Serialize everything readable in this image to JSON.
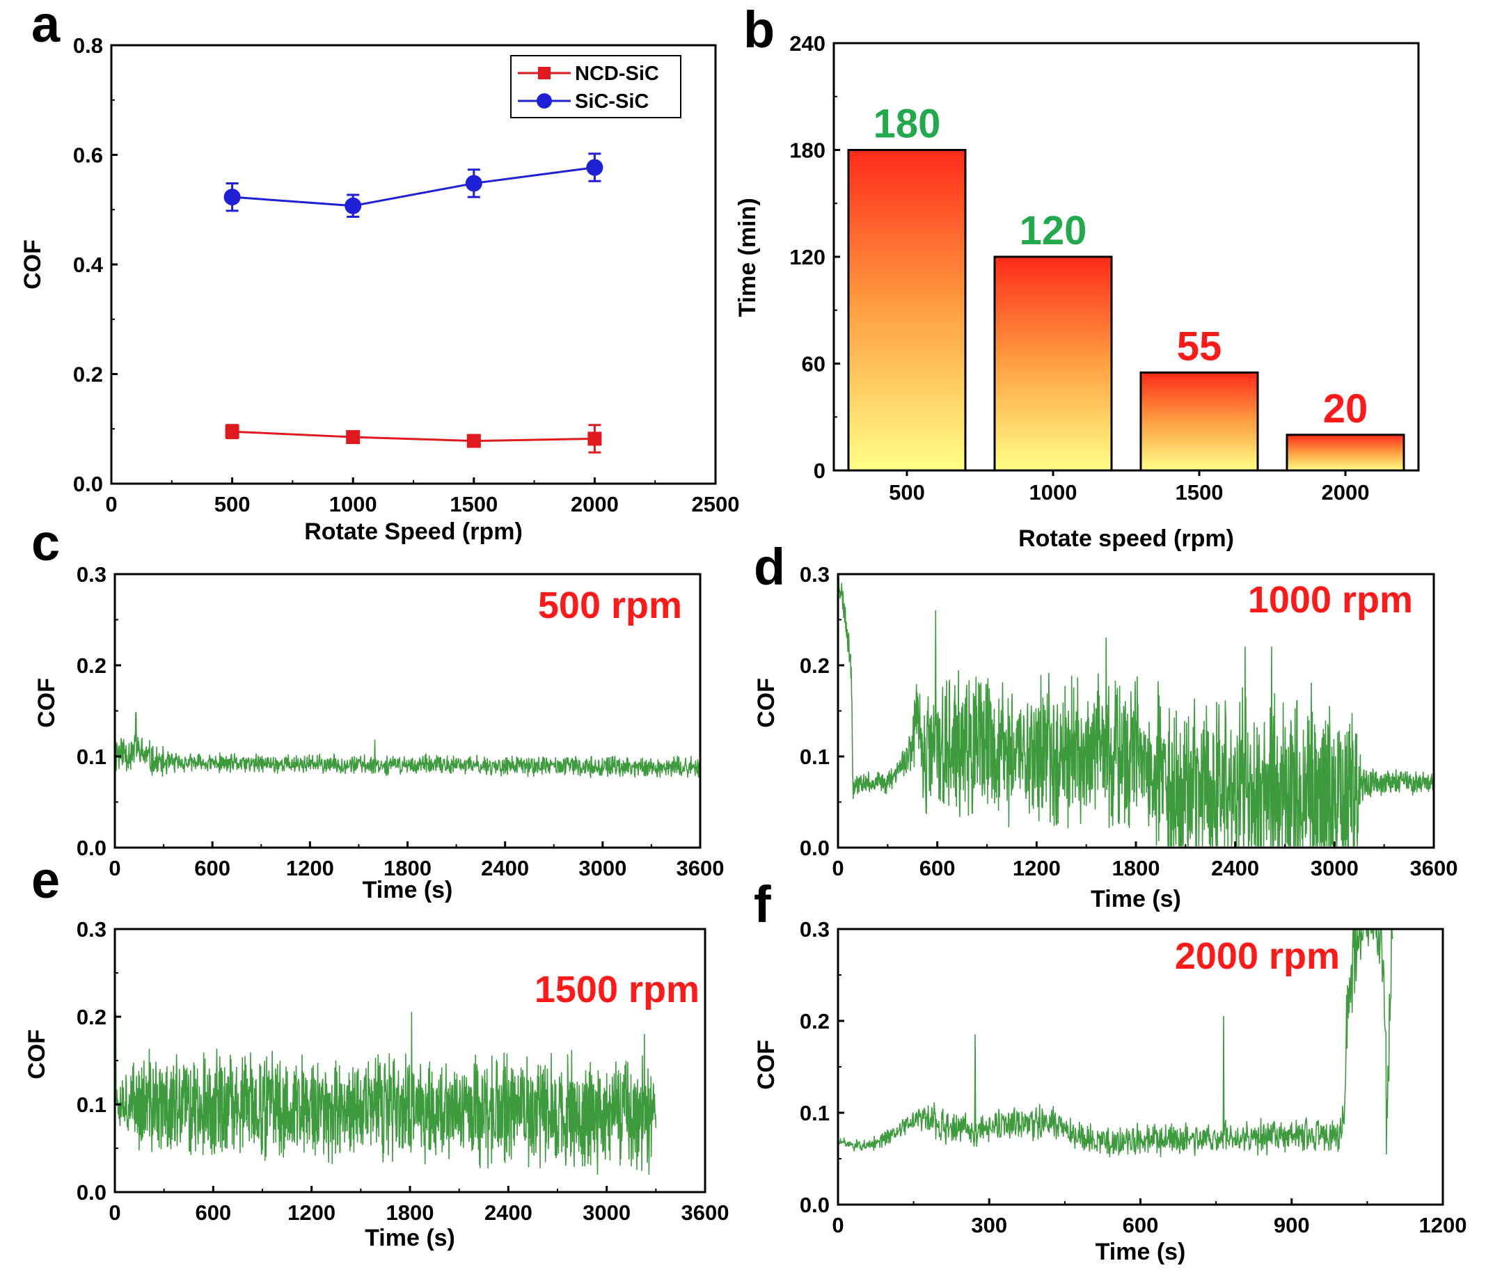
{
  "panels": {
    "a": "a",
    "b": "b",
    "c": "c",
    "d": "d",
    "e": "e",
    "f": "f"
  },
  "colors": {
    "red": "#e0191e",
    "blue": "#1f1fd6",
    "green": "#3d9a3d",
    "bar_label_green": "#22a94b",
    "bar_label_red": "#ff1a1a",
    "bar_top": "#ff2a1a",
    "bar_bottom": "#ffff88"
  },
  "chart_data": [
    {
      "id": "a",
      "type": "line",
      "xlabel": "Rotate Speed (rpm)",
      "ylabel": "COF",
      "xlim": [
        0,
        2500
      ],
      "ylim": [
        0,
        0.8
      ],
      "xticks": [
        "0",
        "500",
        "1000",
        "1500",
        "2000",
        "2500"
      ],
      "yticks": [
        "0.0",
        "0.2",
        "0.4",
        "0.6",
        "0.8"
      ],
      "legend_position": "top-right",
      "series": [
        {
          "name": "NCD-SiC",
          "marker": "square",
          "color": "#e0191e",
          "x": [
            500,
            1000,
            1500,
            2000
          ],
          "y": [
            0.095,
            0.085,
            0.078,
            0.082
          ],
          "err": [
            0.012,
            0.009,
            0.008,
            0.025
          ]
        },
        {
          "name": "SiC-SiC",
          "marker": "circle",
          "color": "#1f1fd6",
          "x": [
            500,
            1000,
            1500,
            2000
          ],
          "y": [
            0.523,
            0.507,
            0.548,
            0.577
          ],
          "err": [
            0.025,
            0.02,
            0.025,
            0.025
          ]
        }
      ]
    },
    {
      "id": "b",
      "type": "bar",
      "xlabel": "Rotate speed (rpm)",
      "ylabel": "Time (min)",
      "ylim": [
        0,
        240
      ],
      "yticks": [
        "0",
        "60",
        "120",
        "180",
        "240"
      ],
      "categories": [
        "500",
        "1000",
        "1500",
        "2000"
      ],
      "values": [
        180,
        120,
        55,
        20
      ],
      "value_labels": [
        "180",
        "120",
        "55",
        "20"
      ],
      "value_label_colors": [
        "#22a94b",
        "#22a94b",
        "#ff1a1a",
        "#ff1a1a"
      ]
    },
    {
      "id": "c",
      "type": "line",
      "annotation": "500 rpm",
      "xlabel": "Time (s)",
      "ylabel": "COF",
      "xlim": [
        0,
        3600
      ],
      "ylim": [
        0,
        0.3
      ],
      "xticks": [
        "0",
        "600",
        "1200",
        "1800",
        "2400",
        "3000",
        "3600"
      ],
      "yticks": [
        "0.0",
        "0.1",
        "0.2",
        "0.3"
      ],
      "trace": {
        "t_end": 3600,
        "samples": 1400,
        "seed": 11,
        "mean_pts": [
          [
            0,
            0.105
          ],
          [
            150,
            0.105
          ],
          [
            250,
            0.093
          ],
          [
            3600,
            0.088
          ]
        ],
        "amp_pts": [
          [
            0,
            0.03
          ],
          [
            250,
            0.022
          ],
          [
            400,
            0.012
          ],
          [
            3600,
            0.013
          ]
        ],
        "spikes": [
          [
            1600,
            0.118
          ],
          [
            130,
            0.148
          ]
        ]
      }
    },
    {
      "id": "d",
      "type": "line",
      "annotation": "1000 rpm",
      "xlabel": "Time (s)",
      "ylabel": "COF",
      "xlim": [
        0,
        3600
      ],
      "ylim": [
        0,
        0.3
      ],
      "xticks": [
        "0",
        "600",
        "1200",
        "1800",
        "2400",
        "3000",
        "3600"
      ],
      "yticks": [
        "0.0",
        "0.1",
        "0.2",
        "0.3"
      ],
      "trace": {
        "t_end": 3600,
        "samples": 1800,
        "seed": 23,
        "mean_pts": [
          [
            0,
            0.3
          ],
          [
            40,
            0.26
          ],
          [
            80,
            0.2
          ],
          [
            90,
            0.07
          ],
          [
            300,
            0.072
          ],
          [
            420,
            0.1
          ],
          [
            470,
            0.14
          ],
          [
            520,
            0.1
          ],
          [
            600,
            0.11
          ],
          [
            1800,
            0.1
          ],
          [
            1900,
            0.07
          ],
          [
            3100,
            0.06
          ],
          [
            3150,
            0.07
          ],
          [
            3600,
            0.072
          ]
        ],
        "amp_pts": [
          [
            0,
            0.02
          ],
          [
            90,
            0.02
          ],
          [
            100,
            0.012
          ],
          [
            380,
            0.015
          ],
          [
            560,
            0.09
          ],
          [
            1800,
            0.1
          ],
          [
            1900,
            0.12
          ],
          [
            3130,
            0.13
          ],
          [
            3160,
            0.02
          ],
          [
            3600,
            0.012
          ]
        ],
        "spikes": [
          [
            590,
            0.26
          ],
          [
            1620,
            0.23
          ],
          [
            2460,
            0.22
          ],
          [
            2620,
            0.22
          ]
        ]
      }
    },
    {
      "id": "e",
      "type": "line",
      "annotation": "1500 rpm",
      "xlabel": "Time (s)",
      "ylabel": "COF",
      "xlim": [
        0,
        3600
      ],
      "ylim": [
        0,
        0.3
      ],
      "xticks": [
        "0",
        "600",
        "1200",
        "1800",
        "2400",
        "3000",
        "3600"
      ],
      "yticks": [
        "0.0",
        "0.1",
        "0.2",
        "0.3"
      ],
      "trace": {
        "t_end": 3300,
        "samples": 1650,
        "seed": 37,
        "mean_pts": [
          [
            0,
            0.11
          ],
          [
            120,
            0.1
          ],
          [
            3300,
            0.09
          ]
        ],
        "amp_pts": [
          [
            0,
            0.03
          ],
          [
            200,
            0.07
          ],
          [
            3300,
            0.075
          ]
        ],
        "spikes": [
          [
            5,
            0.205
          ],
          [
            1810,
            0.205
          ],
          [
            3230,
            0.18
          ]
        ]
      }
    },
    {
      "id": "f",
      "type": "line",
      "annotation": "2000 rpm",
      "xlabel": "Time (s)",
      "ylabel": "COF",
      "xlim": [
        0,
        1200
      ],
      "ylim": [
        0,
        0.3
      ],
      "xticks": [
        "0",
        "300",
        "600",
        "900",
        "1200"
      ],
      "yticks": [
        "0.0",
        "0.1",
        "0.2",
        "0.3"
      ],
      "trace": {
        "t_end": 1100,
        "samples": 1100,
        "seed": 51,
        "mean_pts": [
          [
            0,
            0.068
          ],
          [
            60,
            0.062
          ],
          [
            160,
            0.095
          ],
          [
            260,
            0.08
          ],
          [
            420,
            0.09
          ],
          [
            500,
            0.07
          ],
          [
            1000,
            0.075
          ],
          [
            1010,
            0.2
          ],
          [
            1030,
            0.3
          ],
          [
            1080,
            0.3
          ],
          [
            1090,
            0.1
          ],
          [
            1100,
            0.3
          ]
        ],
        "amp_pts": [
          [
            0,
            0.006
          ],
          [
            140,
            0.012
          ],
          [
            200,
            0.025
          ],
          [
            500,
            0.02
          ],
          [
            1000,
            0.022
          ],
          [
            1005,
            0.06
          ],
          [
            1100,
            0.06
          ]
        ],
        "spikes": [
          [
            272,
            0.185
          ],
          [
            765,
            0.205
          ],
          [
            1088,
            0.055
          ]
        ]
      }
    }
  ]
}
